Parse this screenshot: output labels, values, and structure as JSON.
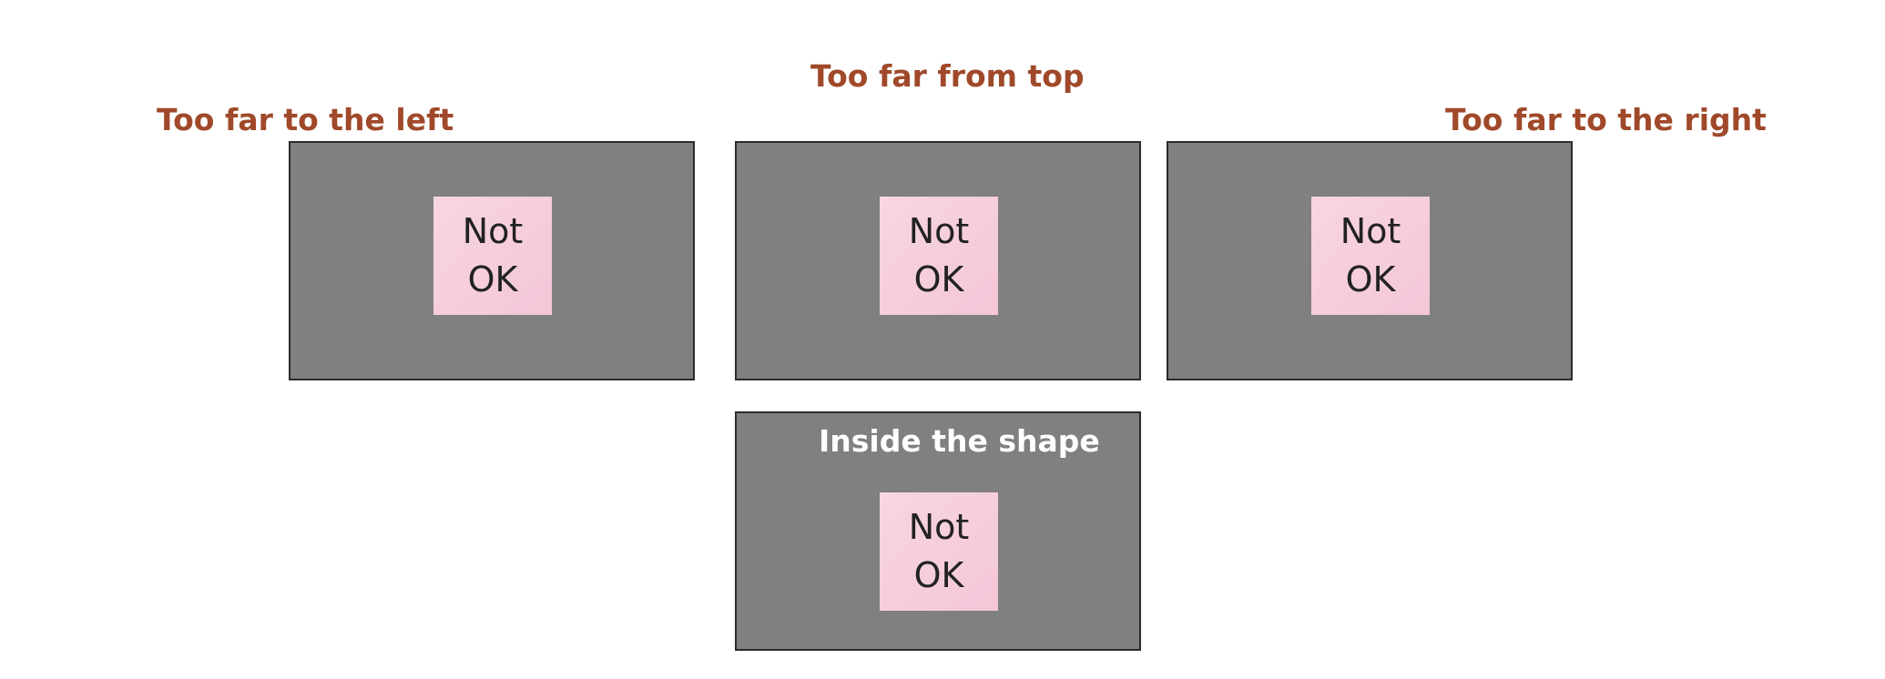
{
  "captions": {
    "left": "Too far to the left",
    "top": "Too far from top",
    "right": "Too far to the right",
    "inside": "Inside the shape"
  },
  "notes": {
    "left": {
      "line1": "Not",
      "line2": "OK"
    },
    "top": {
      "line1": "Not",
      "line2": "OK"
    },
    "right": {
      "line1": "Not",
      "line2": "OK"
    },
    "inside": {
      "line1": "Not",
      "line2": "OK"
    }
  },
  "colors": {
    "caption_orange": "#a0492a",
    "panel_gray": "#808080",
    "sticky_pink": "#f5cbdc"
  }
}
